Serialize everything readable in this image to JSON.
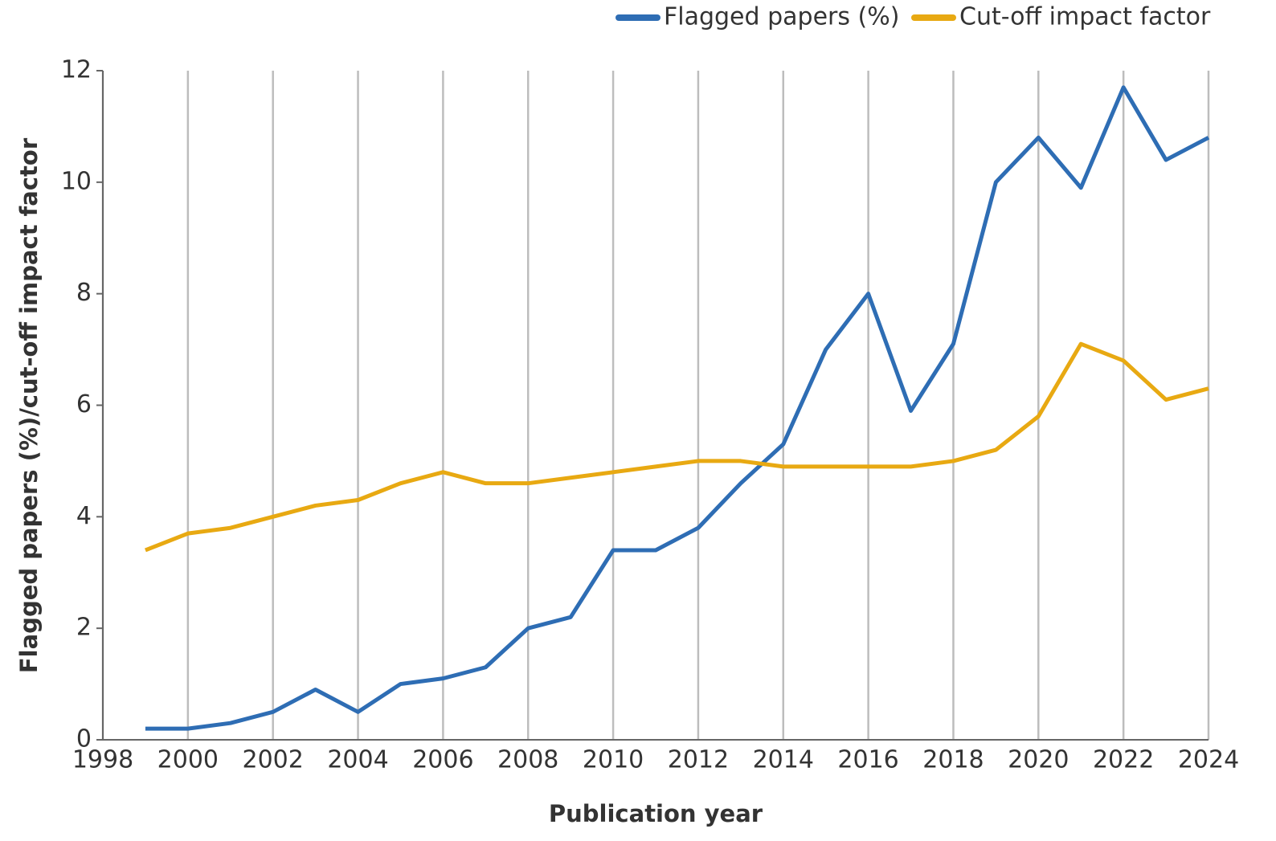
{
  "chart_data": {
    "type": "line",
    "x": [
      1999,
      2000,
      2001,
      2002,
      2003,
      2004,
      2005,
      2006,
      2007,
      2008,
      2009,
      2010,
      2011,
      2012,
      2013,
      2014,
      2015,
      2016,
      2017,
      2018,
      2019,
      2020,
      2021,
      2022,
      2023,
      2024
    ],
    "series": [
      {
        "name": "Flagged papers (%)",
        "color": "#2e6db4",
        "values": [
          0.2,
          0.2,
          0.3,
          0.5,
          0.9,
          0.5,
          1.0,
          1.1,
          1.3,
          2.0,
          2.2,
          3.4,
          3.4,
          3.8,
          4.6,
          5.3,
          7.0,
          8.0,
          5.9,
          7.1,
          10.0,
          10.8,
          9.9,
          11.7,
          10.4,
          10.8
        ]
      },
      {
        "name": "Cut-off impact factor",
        "color": "#e8a912",
        "values": [
          3.4,
          3.7,
          3.8,
          4.0,
          4.2,
          4.3,
          4.6,
          4.8,
          4.6,
          4.6,
          4.7,
          4.8,
          4.9,
          5.0,
          5.0,
          4.9,
          4.9,
          4.9,
          4.9,
          5.0,
          5.2,
          5.8,
          7.1,
          6.8,
          6.1,
          6.3
        ]
      }
    ],
    "x_label": "Publication year",
    "y_label": "Flagged papers (%)/cut-off impact factor",
    "xlim": [
      1998,
      2024
    ],
    "xticks": [
      1998,
      2000,
      2002,
      2004,
      2006,
      2008,
      2010,
      2012,
      2014,
      2016,
      2018,
      2020,
      2022,
      2024
    ],
    "ylim": [
      0,
      12
    ],
    "yticks": [
      0,
      2,
      4,
      6,
      8,
      10,
      12
    ],
    "grid": "x",
    "legend": "top-right"
  }
}
